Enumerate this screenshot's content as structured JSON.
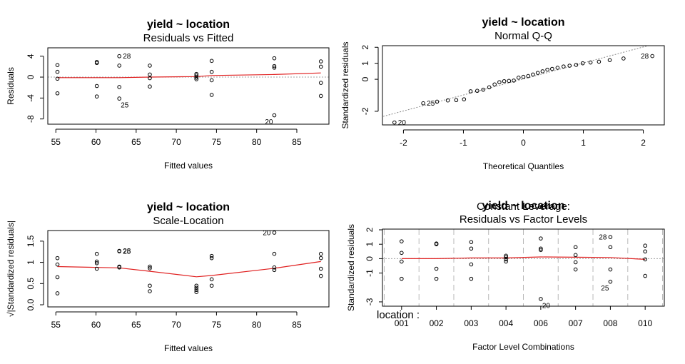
{
  "chart_data": [
    {
      "type": "scatter",
      "title": "yield ~ location",
      "subtitle": "Residuals vs Fitted",
      "xlabel": "Fitted values",
      "ylabel": "Residuals",
      "xlim": [
        54,
        89
      ],
      "ylim": [
        -9,
        5.6
      ],
      "xticks": [
        55,
        60,
        65,
        70,
        75,
        80,
        85
      ],
      "yticks": [
        -8,
        -4,
        0,
        4
      ],
      "points": [
        [
          55.2,
          2.3
        ],
        [
          55.2,
          1.0
        ],
        [
          55.2,
          -0.3
        ],
        [
          55.2,
          -3.1
        ],
        [
          60.1,
          2.9
        ],
        [
          60.1,
          2.7
        ],
        [
          60.1,
          -1.7
        ],
        [
          60.1,
          -3.7
        ],
        [
          62.9,
          4.0
        ],
        [
          62.9,
          2.2
        ],
        [
          62.9,
          -1.9
        ],
        [
          62.9,
          -4.1
        ],
        [
          66.7,
          2.2
        ],
        [
          66.7,
          0.5
        ],
        [
          66.7,
          -0.2
        ],
        [
          66.7,
          -1.8
        ],
        [
          72.5,
          0.6
        ],
        [
          72.5,
          0.3
        ],
        [
          72.5,
          -0.1
        ],
        [
          72.5,
          -0.4
        ],
        [
          74.4,
          3.1
        ],
        [
          74.4,
          1.0
        ],
        [
          74.4,
          -0.6
        ],
        [
          74.4,
          -3.4
        ],
        [
          82.2,
          3.6
        ],
        [
          82.2,
          2.1
        ],
        [
          82.2,
          1.8
        ],
        [
          82.2,
          -7.3
        ],
        [
          88.0,
          3.0
        ],
        [
          88.0,
          2.0
        ],
        [
          88.0,
          -1.1
        ],
        [
          88.0,
          -3.6
        ]
      ],
      "smooth": [
        [
          55.2,
          -0.1
        ],
        [
          60.1,
          -0.1
        ],
        [
          62.9,
          -0.1
        ],
        [
          66.7,
          0.0
        ],
        [
          72.5,
          0.1
        ],
        [
          74.4,
          0.3
        ],
        [
          82.2,
          0.5
        ],
        [
          88.0,
          0.8
        ]
      ],
      "reference_line": 0,
      "point_labels": [
        {
          "text": "28",
          "x": 62.9,
          "y": 4.0,
          "pos": "right"
        },
        {
          "text": "25",
          "x": 62.9,
          "y": -4.1,
          "pos": "below-right"
        },
        {
          "text": "20",
          "x": 82.2,
          "y": -7.3,
          "pos": "below-left"
        }
      ]
    },
    {
      "type": "scatter",
      "title": "yield ~ location",
      "subtitle": "Normal Q-Q",
      "xlabel": "Theoretical Quantiles",
      "ylabel": "Standardized residuals",
      "xlim": [
        -2.35,
        2.35
      ],
      "ylim": [
        -2.85,
        2.1
      ],
      "xticks": [
        -2,
        -1,
        0,
        1,
        2
      ],
      "yticks": [
        -2,
        0,
        1,
        2
      ],
      "points": [
        [
          -2.15,
          -2.7
        ],
        [
          -1.67,
          -1.5
        ],
        [
          -1.44,
          -1.4
        ],
        [
          -1.26,
          -1.32
        ],
        [
          -1.12,
          -1.3
        ],
        [
          -0.99,
          -1.25
        ],
        [
          -0.88,
          -0.75
        ],
        [
          -0.77,
          -0.72
        ],
        [
          -0.67,
          -0.65
        ],
        [
          -0.57,
          -0.5
        ],
        [
          -0.48,
          -0.32
        ],
        [
          -0.4,
          -0.18
        ],
        [
          -0.32,
          -0.12
        ],
        [
          -0.24,
          -0.1
        ],
        [
          -0.16,
          -0.08
        ],
        [
          -0.08,
          0.1
        ],
        [
          0.0,
          0.15
        ],
        [
          0.08,
          0.2
        ],
        [
          0.16,
          0.3
        ],
        [
          0.24,
          0.4
        ],
        [
          0.32,
          0.5
        ],
        [
          0.4,
          0.6
        ],
        [
          0.48,
          0.65
        ],
        [
          0.57,
          0.72
        ],
        [
          0.67,
          0.8
        ],
        [
          0.77,
          0.85
        ],
        [
          0.88,
          0.9
        ],
        [
          0.99,
          1.0
        ],
        [
          1.12,
          1.05
        ],
        [
          1.26,
          1.1
        ],
        [
          1.44,
          1.2
        ],
        [
          1.67,
          1.3
        ],
        [
          2.15,
          1.45
        ]
      ],
      "reference_line_slope": 1.0,
      "reference_line_intercept": 0.02,
      "point_labels": [
        {
          "text": "20",
          "x": -2.15,
          "y": -2.7,
          "pos": "right"
        },
        {
          "text": "25",
          "x": -1.67,
          "y": -1.5,
          "pos": "right"
        },
        {
          "text": "28",
          "x": 2.15,
          "y": 1.45,
          "pos": "left"
        }
      ]
    },
    {
      "type": "scatter",
      "title": "yield ~ location",
      "subtitle": "Scale-Location",
      "ylabel_prefix": "√",
      "ylabel": "|Standardized residuals|",
      "xlabel": "Fitted values",
      "xlim": [
        54,
        89
      ],
      "ylim": [
        -0.05,
        1.75
      ],
      "xticks": [
        55,
        60,
        65,
        70,
        75,
        80,
        85
      ],
      "yticks": [
        0.0,
        0.5,
        1.0,
        1.5
      ],
      "points": [
        [
          55.2,
          1.1
        ],
        [
          55.2,
          0.95
        ],
        [
          55.2,
          0.65
        ],
        [
          55.2,
          0.27
        ],
        [
          60.1,
          1.2
        ],
        [
          60.1,
          1.02
        ],
        [
          60.1,
          0.98
        ],
        [
          60.1,
          0.85
        ],
        [
          62.9,
          1.27
        ],
        [
          62.9,
          1.26
        ],
        [
          62.9,
          0.9
        ],
        [
          62.9,
          0.88
        ],
        [
          66.7,
          0.9
        ],
        [
          66.7,
          0.86
        ],
        [
          66.7,
          0.45
        ],
        [
          66.7,
          0.32
        ],
        [
          72.5,
          0.45
        ],
        [
          72.5,
          0.4
        ],
        [
          72.5,
          0.35
        ],
        [
          72.5,
          0.3
        ],
        [
          74.4,
          1.15
        ],
        [
          74.4,
          1.1
        ],
        [
          74.4,
          0.6
        ],
        [
          74.4,
          0.45
        ],
        [
          82.2,
          1.7
        ],
        [
          82.2,
          1.2
        ],
        [
          82.2,
          0.88
        ],
        [
          82.2,
          0.82
        ],
        [
          88.0,
          1.2
        ],
        [
          88.0,
          1.1
        ],
        [
          88.0,
          0.85
        ],
        [
          88.0,
          0.68
        ]
      ],
      "smooth": [
        [
          55.2,
          0.9
        ],
        [
          60.1,
          0.88
        ],
        [
          62.9,
          0.87
        ],
        [
          66.7,
          0.79
        ],
        [
          72.5,
          0.66
        ],
        [
          74.4,
          0.69
        ],
        [
          82.2,
          0.86
        ],
        [
          88.0,
          1.02
        ]
      ],
      "point_labels": [
        {
          "text": "28",
          "x": 62.9,
          "y": 1.27,
          "pos": "right"
        },
        {
          "text": "25",
          "x": 62.9,
          "y": 1.26,
          "pos": "right"
        },
        {
          "text": "20",
          "x": 82.2,
          "y": 1.7,
          "pos": "left"
        }
      ]
    },
    {
      "type": "scatter",
      "title": "yield ~ location",
      "title_overlap": "Constant Leverage:",
      "subtitle": "Residuals vs Factor Levels",
      "xlabel": "Factor Level Combinations",
      "ylabel": "Standardized residuals",
      "factor_label": "location :",
      "categories": [
        "001",
        "002",
        "003",
        "004",
        "006",
        "007",
        "008",
        "010"
      ],
      "ylim": [
        -3.3,
        2.05
      ],
      "yticks": [
        -3,
        -1,
        0,
        1,
        2
      ],
      "points": [
        [
          1,
          1.2
        ],
        [
          1,
          0.4
        ],
        [
          1,
          -0.2
        ],
        [
          1,
          -1.4
        ],
        [
          2,
          1.05
        ],
        [
          2,
          1.0
        ],
        [
          2,
          -0.7
        ],
        [
          2,
          -1.4
        ],
        [
          3,
          1.15
        ],
        [
          3,
          0.7
        ],
        [
          3,
          -0.4
        ],
        [
          3,
          -1.4
        ],
        [
          4,
          0.2
        ],
        [
          4,
          0.1
        ],
        [
          4,
          -0.05
        ],
        [
          4,
          -0.2
        ],
        [
          5,
          1.4
        ],
        [
          5,
          0.7
        ],
        [
          5,
          0.6
        ],
        [
          5,
          -2.8
        ],
        [
          6,
          0.8
        ],
        [
          6,
          0.25
        ],
        [
          6,
          -0.25
        ],
        [
          6,
          -0.75
        ],
        [
          7,
          1.5
        ],
        [
          7,
          0.8
        ],
        [
          7,
          -0.75
        ],
        [
          7,
          -1.6
        ],
        [
          8,
          0.9
        ],
        [
          8,
          0.5
        ],
        [
          8,
          -0.05
        ],
        [
          8,
          -1.2
        ]
      ],
      "smooth": [
        [
          1,
          0.0
        ],
        [
          2,
          0.0
        ],
        [
          3,
          0.05
        ],
        [
          4,
          0.05
        ],
        [
          5,
          0.12
        ],
        [
          6,
          0.1
        ],
        [
          7,
          0.08
        ],
        [
          8,
          -0.05
        ]
      ],
      "reference_line": 0,
      "point_labels": [
        {
          "text": "28",
          "x": 7,
          "y": 1.5,
          "pos": "left"
        },
        {
          "text": "25",
          "x": 7,
          "y": -1.6,
          "pos": "below-left"
        },
        {
          "text": "20",
          "x": 5,
          "y": -2.8,
          "pos": "below-right"
        }
      ]
    }
  ]
}
